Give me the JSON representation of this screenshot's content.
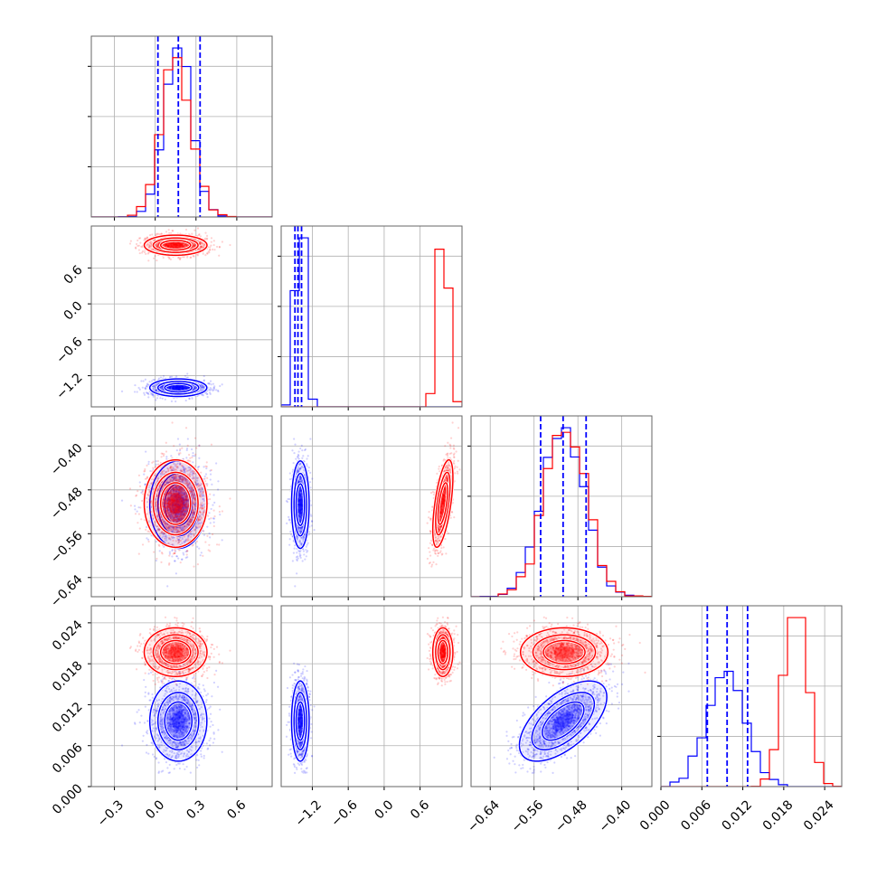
{
  "chart_data": {
    "type": "corner",
    "grid": true,
    "series": [
      {
        "color": "#0000ff",
        "means": [
          0.17,
          -1.4,
          -0.507,
          0.0096
        ],
        "sds": [
          0.1,
          0.07,
          0.038,
          0.0028
        ],
        "corr": [
          0.0,
          0.0,
          0.0,
          0.0,
          0.0,
          0.6
        ]
      },
      {
        "color": "#ff0000",
        "means": [
          0.15,
          0.98,
          -0.505,
          0.0197
        ],
        "sds": [
          0.11,
          0.08,
          0.038,
          0.0017
        ],
        "corr": [
          0.0,
          0.0,
          0.6,
          0.0,
          0.0,
          0.0
        ]
      }
    ],
    "quantile_lines": [
      [
        0.02,
        0.17,
        0.33
      ],
      [
        -1.49,
        -1.44,
        -1.38
      ],
      [
        -0.548,
        -0.507,
        -0.465
      ],
      [
        0.0068,
        0.0097,
        0.0127
      ]
    ],
    "axes": [
      {
        "range": [
          -0.47,
          0.86
        ],
        "ticks": [
          -0.3,
          0.0,
          0.3,
          0.6
        ],
        "tick_labels": [
          "−0.3",
          "0.0",
          "0.3",
          "0.6"
        ]
      },
      {
        "range": [
          -1.72,
          1.3
        ],
        "ticks": [
          -1.2,
          -0.6,
          0.0,
          0.6
        ],
        "tick_labels": [
          "−1.2",
          "−0.6",
          "0.0",
          "0.6"
        ]
      },
      {
        "range": [
          -0.675,
          -0.345
        ],
        "ticks": [
          -0.64,
          -0.56,
          -0.48,
          -0.4
        ],
        "tick_labels": [
          "−0.64",
          "−0.56",
          "−0.48",
          "−0.40"
        ]
      },
      {
        "range": [
          0.0,
          0.0265
        ],
        "ticks": [
          0.0,
          0.006,
          0.012,
          0.018,
          0.024
        ],
        "tick_labels": [
          "0.000",
          "0.006",
          "0.012",
          "0.018",
          "0.024"
        ]
      }
    ]
  }
}
